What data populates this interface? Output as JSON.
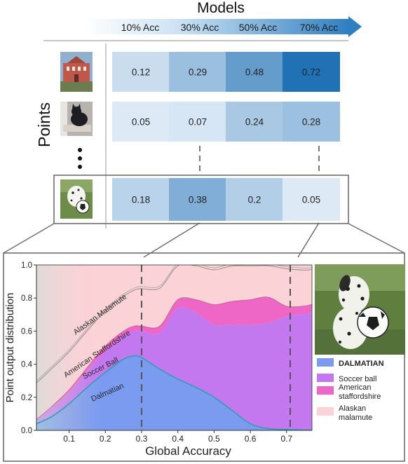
{
  "header": {
    "models_label": "Models",
    "points_label": "Points",
    "columns": [
      "10% Acc",
      "30% Acc",
      "50% Acc",
      "70% Acc"
    ],
    "arrow_color": "#2f7fc1"
  },
  "rows": [
    {
      "image": "building-photo",
      "values": [
        "0.12",
        "0.29",
        "0.48",
        "0.72"
      ]
    },
    {
      "image": "cat-photo",
      "values": [
        "0.05",
        "0.07",
        "0.24",
        "0.28"
      ]
    },
    {
      "image": "dalmatian-photo",
      "values": [
        "0.18",
        "0.38",
        "0.2",
        "0.05"
      ]
    }
  ],
  "chart_data": {
    "type": "area",
    "xlabel": "Global Accuracy",
    "ylabel": "Point output distribution",
    "xlim": [
      0.01,
      0.77
    ],
    "ylim": [
      0,
      1.0
    ],
    "x_ticks": [
      "0.1",
      "0.2",
      "0.3",
      "0.4",
      "0.5",
      "0.6",
      "0.7"
    ],
    "y_ticks": [
      "0.0",
      "0.2",
      "0.4",
      "0.6",
      "0.8",
      "1.0"
    ],
    "highlight_x": [
      0.3,
      0.71
    ],
    "x": [
      0.01,
      0.05,
      0.1,
      0.15,
      0.2,
      0.25,
      0.28,
      0.3,
      0.35,
      0.4,
      0.45,
      0.5,
      0.55,
      0.6,
      0.65,
      0.7,
      0.75,
      0.77
    ],
    "series": [
      {
        "name": "DALMATIAN",
        "color": "#7a9bef",
        "values": [
          0.04,
          0.08,
          0.16,
          0.26,
          0.35,
          0.43,
          0.45,
          0.44,
          0.37,
          0.31,
          0.26,
          0.2,
          0.12,
          0.04,
          0.01,
          0.005,
          0.002,
          0.002
        ]
      },
      {
        "name": "Soccer ball",
        "color": "#c478f0",
        "values": [
          0.02,
          0.05,
          0.07,
          0.1,
          0.13,
          0.14,
          0.15,
          0.16,
          0.22,
          0.43,
          0.45,
          0.44,
          0.52,
          0.6,
          0.64,
          0.685,
          0.7,
          0.71
        ]
      },
      {
        "name": "American staffordshire",
        "color": "#ee66c6",
        "values": [
          0.005,
          0.01,
          0.015,
          0.02,
          0.03,
          0.03,
          0.03,
          0.03,
          0.04,
          0.05,
          0.08,
          0.12,
          0.14,
          0.15,
          0.155,
          0.06,
          0.05,
          0.05
        ]
      },
      {
        "name": "Alaskan malamute",
        "color": "#fbd2d6",
        "values": [
          0.935,
          0.86,
          0.755,
          0.62,
          0.49,
          0.4,
          0.37,
          0.37,
          0.37,
          0.21,
          0.21,
          0.24,
          0.22,
          0.21,
          0.195,
          0.25,
          0.248,
          0.238
        ]
      }
    ],
    "curve_labels": [
      "Alaskan Malamute",
      "American Staffordshire",
      "Soccer Ball",
      "Dalmatian"
    ],
    "legend": [
      "DALMATIAN",
      "Soccer ball",
      "American staffordshire",
      "Alaskan malamute"
    ]
  }
}
